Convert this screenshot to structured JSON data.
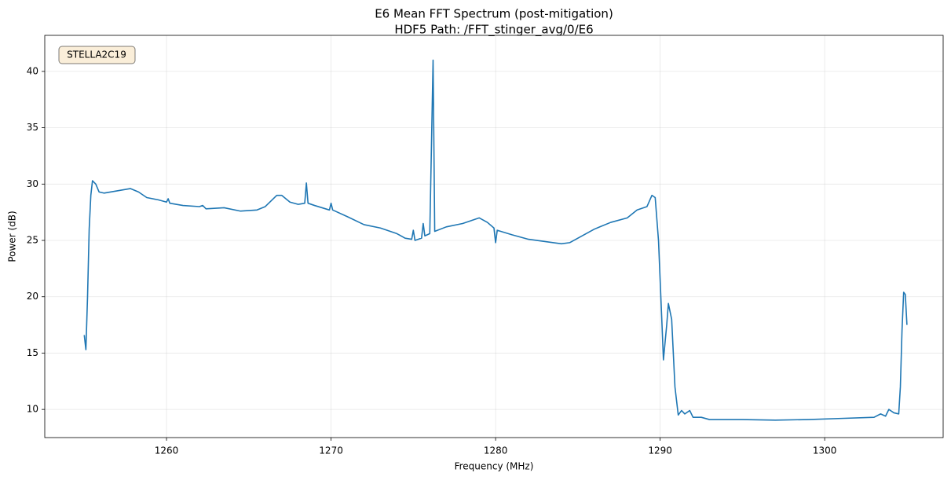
{
  "chart_data": {
    "type": "line",
    "title": "E6 Mean FFT Spectrum (post-mitigation)",
    "subtitle": "HDF5 Path: /FFT_stinger_avg/0/E6",
    "xlabel": "Frequency (MHz)",
    "ylabel": "Power (dB)",
    "annotation": "STELLA2C19",
    "color": "#1f77b4",
    "grid": true,
    "xlim": [
      1252.6,
      1307.2
    ],
    "xticks": [
      1260,
      1270,
      1280,
      1290,
      1300
    ],
    "ylim": [
      7.5,
      43.2
    ],
    "yticks": [
      10,
      15,
      20,
      25,
      30,
      35,
      40
    ],
    "x": [
      1255.0,
      1255.1,
      1255.2,
      1255.3,
      1255.4,
      1255.5,
      1255.7,
      1255.9,
      1256.2,
      1257,
      1257.8,
      1258.3,
      1258.8,
      1259.5,
      1260.0,
      1260.1,
      1260.2,
      1261,
      1262,
      1262.2,
      1262.4,
      1263.5,
      1264.5,
      1265.5,
      1266,
      1266.7,
      1267,
      1267.5,
      1268,
      1268.4,
      1268.5,
      1268.6,
      1269,
      1269.9,
      1270,
      1270.1,
      1271,
      1272,
      1273,
      1274,
      1274.5,
      1274.9,
      1275,
      1275.1,
      1275.5,
      1275.6,
      1275.7,
      1276.0,
      1276.2,
      1276.3,
      1277,
      1278,
      1279,
      1279.5,
      1279.9,
      1280,
      1280.1,
      1281,
      1282,
      1283,
      1284,
      1284.5,
      1285,
      1286,
      1287,
      1288,
      1288.6,
      1289.2,
      1289.5,
      1289.7,
      1289.9,
      1290.1,
      1290.2,
      1290.4,
      1290.5,
      1290.7,
      1290.9,
      1291.1,
      1291.3,
      1291.5,
      1291.8,
      1292,
      1292.5,
      1293,
      1295,
      1297,
      1299,
      1301,
      1303,
      1303.4,
      1303.7,
      1303.9,
      1304.2,
      1304.5,
      1304.6,
      1304.7,
      1304.8,
      1304.9,
      1305.0
    ],
    "values": [
      16.6,
      15.3,
      20,
      26,
      29,
      30.3,
      30.0,
      29.3,
      29.2,
      29.4,
      29.6,
      29.3,
      28.8,
      28.6,
      28.4,
      28.7,
      28.3,
      28.1,
      28.0,
      28.1,
      27.8,
      27.9,
      27.6,
      27.7,
      28.0,
      29.0,
      29.0,
      28.4,
      28.2,
      28.3,
      30.1,
      28.3,
      28.1,
      27.7,
      28.3,
      27.7,
      27.1,
      26.4,
      26.1,
      25.6,
      25.2,
      25.1,
      25.9,
      25.0,
      25.2,
      26.5,
      25.4,
      25.6,
      41.0,
      25.8,
      26.2,
      26.5,
      27.0,
      26.6,
      26.1,
      24.8,
      25.9,
      25.5,
      25.1,
      24.9,
      24.7,
      24.8,
      25.2,
      26.0,
      26.6,
      27.0,
      27.7,
      28.0,
      29.0,
      28.8,
      25,
      18,
      14.4,
      17.5,
      19.4,
      18,
      12,
      9.5,
      9.9,
      9.6,
      9.9,
      9.3,
      9.3,
      9.1,
      9.1,
      9.05,
      9.1,
      9.2,
      9.3,
      9.6,
      9.4,
      10.0,
      9.7,
      9.6,
      12,
      17,
      20.4,
      20.2,
      17.5
    ]
  }
}
